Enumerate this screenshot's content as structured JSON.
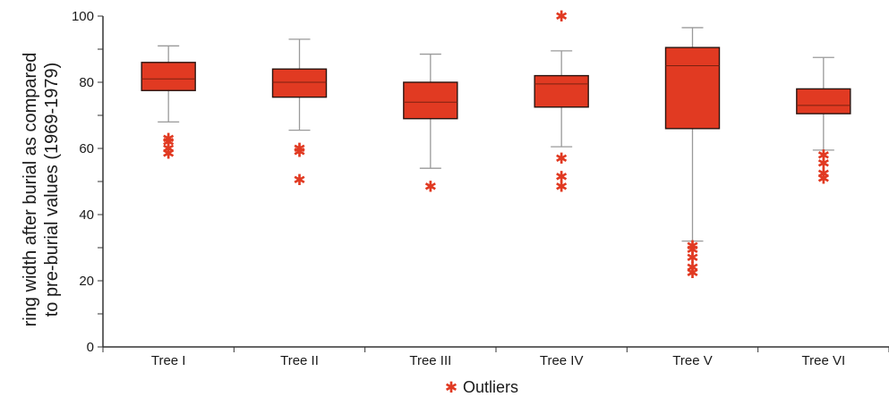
{
  "chart_data": {
    "type": "boxplot",
    "ylabel_lines": [
      "ring width after burial as compared",
      "to pre-burial values (1969-1979)"
    ],
    "ylim": [
      0,
      100
    ],
    "yticks": [
      0,
      20,
      40,
      60,
      80,
      100
    ],
    "categories": [
      "Tree  I",
      "Tree II",
      "Tree III",
      "Tree IV",
      "Tree V",
      "Tree VI"
    ],
    "boxes": [
      {
        "whisker_low": 68,
        "q1": 77.5,
        "median": 81,
        "q3": 86,
        "whisker_high": 91,
        "outliers": [
          58.5,
          60,
          62,
          63
        ]
      },
      {
        "whisker_low": 65.5,
        "q1": 75.5,
        "median": 80,
        "q3": 84,
        "whisker_high": 93,
        "outliers": [
          50.5,
          59,
          60
        ]
      },
      {
        "whisker_low": 54,
        "q1": 69,
        "median": 74,
        "q3": 80,
        "whisker_high": 88.5,
        "outliers": [
          48.5
        ]
      },
      {
        "whisker_low": 60.5,
        "q1": 72.5,
        "median": 79.5,
        "q3": 82,
        "whisker_high": 89.5,
        "outliers": [
          48.5,
          51.5,
          57,
          100
        ]
      },
      {
        "whisker_low": 32,
        "q1": 66,
        "median": 85,
        "q3": 90.5,
        "whisker_high": 96.5,
        "outliers": [
          22.5,
          24,
          27,
          29.5,
          30.5
        ]
      },
      {
        "whisker_low": 59.5,
        "q1": 70.5,
        "median": 73,
        "q3": 78,
        "whisker_high": 87.5,
        "outliers": [
          51,
          52.5,
          55.5,
          58
        ]
      }
    ],
    "colors": {
      "box_fill": "#e13a22",
      "box_edge": "#2a1410",
      "median": "#7a2010",
      "whisker": "#9a9a9a",
      "outlier": "#e13a22",
      "axis": "#333333"
    },
    "legend": {
      "symbol": "✱",
      "label": "Outliers",
      "position": "bottom-center"
    }
  }
}
